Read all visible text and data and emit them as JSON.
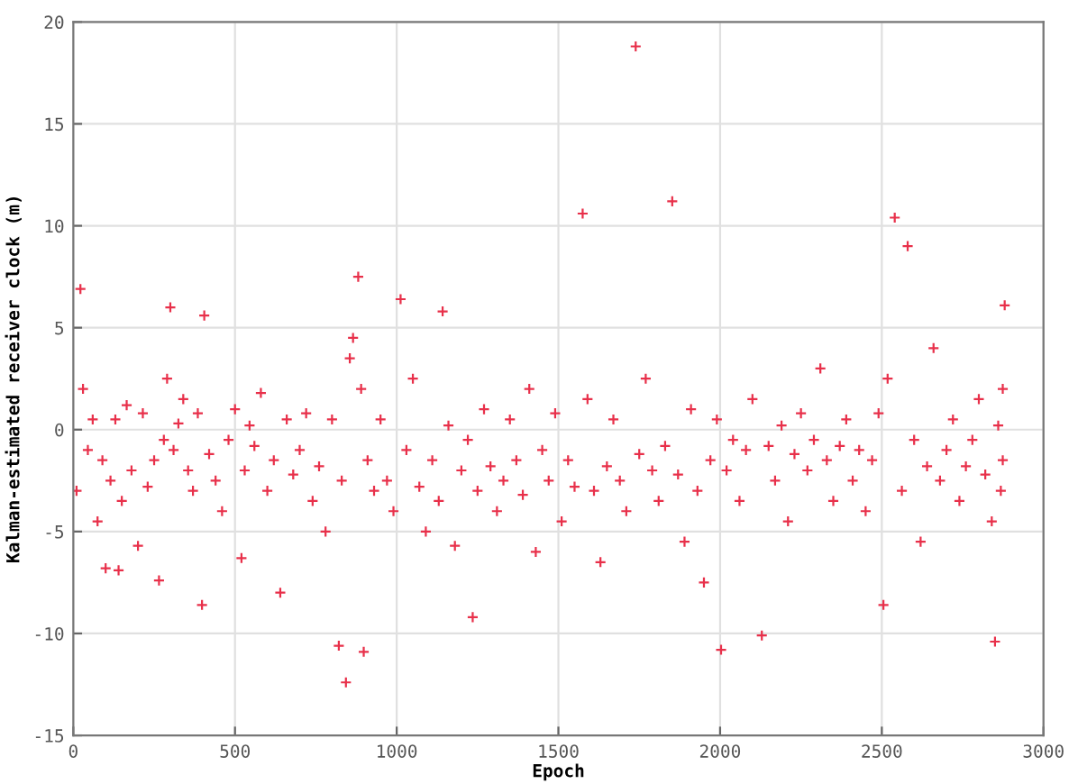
{
  "chart_data": {
    "type": "scatter",
    "xlabel": "Epoch",
    "ylabel": "Kalman-estimated receiver clock (m)",
    "xlim": [
      0,
      3000
    ],
    "ylim": [
      -15,
      20
    ],
    "xticks": [
      0,
      500,
      1000,
      1500,
      2000,
      2500,
      3000
    ],
    "yticks": [
      -15,
      -10,
      -5,
      0,
      5,
      10,
      15,
      20
    ],
    "grid": true,
    "marker": "cross",
    "legend": false,
    "series": [
      {
        "color": "#e8304a",
        "x": [
          22,
          10,
          30,
          45,
          60,
          75,
          90,
          100,
          115,
          130,
          140,
          150,
          165,
          180,
          200,
          215,
          230,
          250,
          265,
          280,
          290,
          300,
          310,
          325,
          340,
          355,
          370,
          385,
          398,
          405,
          420,
          440,
          460,
          480,
          500,
          520,
          530,
          545,
          560,
          580,
          600,
          620,
          640,
          660,
          680,
          700,
          720,
          740,
          760,
          780,
          800,
          821,
          830,
          843,
          855,
          865,
          881,
          890,
          898,
          910,
          930,
          950,
          970,
          990,
          1012,
          1030,
          1050,
          1070,
          1090,
          1110,
          1130,
          1142,
          1160,
          1180,
          1200,
          1220,
          1235,
          1250,
          1270,
          1290,
          1310,
          1330,
          1350,
          1370,
          1390,
          1410,
          1430,
          1450,
          1470,
          1490,
          1510,
          1530,
          1550,
          1575,
          1590,
          1610,
          1630,
          1650,
          1670,
          1690,
          1710,
          1739,
          1750,
          1770,
          1790,
          1810,
          1830,
          1852,
          1870,
          1890,
          1910,
          1930,
          1950,
          1970,
          1990,
          2003,
          2020,
          2040,
          2060,
          2080,
          2100,
          2129,
          2150,
          2170,
          2190,
          2210,
          2230,
          2250,
          2270,
          2290,
          2310,
          2330,
          2350,
          2370,
          2390,
          2410,
          2430,
          2450,
          2470,
          2490,
          2505,
          2518,
          2540,
          2562,
          2580,
          2600,
          2620,
          2640,
          2660,
          2680,
          2700,
          2720,
          2740,
          2760,
          2780,
          2800,
          2820,
          2840,
          2860,
          2874,
          2874,
          2880,
          2850,
          2868
        ],
        "values": [
          6.9,
          -3.0,
          2.0,
          -1.0,
          0.5,
          -4.5,
          -1.5,
          -6.8,
          -2.5,
          0.5,
          -6.9,
          -3.5,
          1.2,
          -2.0,
          -5.7,
          0.8,
          -2.8,
          -1.5,
          -7.4,
          -0.5,
          2.5,
          6.0,
          -1.0,
          0.3,
          1.5,
          -2.0,
          -3.0,
          0.8,
          -8.6,
          5.6,
          -1.2,
          -2.5,
          -4.0,
          -0.5,
          1.0,
          -6.3,
          -2.0,
          0.2,
          -0.8,
          1.8,
          -3.0,
          -1.5,
          -8.0,
          0.5,
          -2.2,
          -1.0,
          0.8,
          -3.5,
          -1.8,
          -5.0,
          0.5,
          -10.6,
          -2.5,
          -12.4,
          3.5,
          4.5,
          7.5,
          2.0,
          -10.9,
          -1.5,
          -3.0,
          0.5,
          -2.5,
          -4.0,
          6.4,
          -1.0,
          2.5,
          -2.8,
          -5.0,
          -1.5,
          -3.5,
          5.8,
          0.2,
          -5.7,
          -2.0,
          -0.5,
          -9.2,
          -3.0,
          1.0,
          -1.8,
          -4.0,
          -2.5,
          0.5,
          -1.5,
          -3.2,
          2.0,
          -6.0,
          -1.0,
          -2.5,
          0.8,
          -4.5,
          -1.5,
          -2.8,
          10.6,
          1.5,
          -3.0,
          -6.5,
          -1.8,
          0.5,
          -2.5,
          -4.0,
          18.8,
          -1.2,
          2.5,
          -2.0,
          -3.5,
          -0.8,
          11.2,
          -2.2,
          -5.5,
          1.0,
          -3.0,
          -7.5,
          -1.5,
          0.5,
          -10.8,
          -2.0,
          -0.5,
          -3.5,
          -1.0,
          1.5,
          -10.1,
          -0.8,
          -2.5,
          0.2,
          -4.5,
          -1.2,
          0.8,
          -2.0,
          -0.5,
          3.0,
          -1.5,
          -3.5,
          -0.8,
          0.5,
          -2.5,
          -1.0,
          -4.0,
          -1.5,
          0.8,
          -8.6,
          2.5,
          10.4,
          -3.0,
          9.0,
          -0.5,
          -5.5,
          -1.8,
          4.0,
          -2.5,
          -1.0,
          0.5,
          -3.5,
          -1.8,
          -0.5,
          1.5,
          -2.2,
          -4.5,
          0.2,
          -1.5,
          2.0,
          6.1,
          -10.4,
          -3.0
        ]
      }
    ]
  }
}
